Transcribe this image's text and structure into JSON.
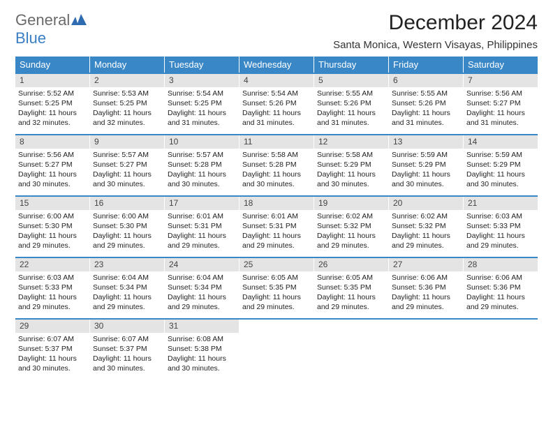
{
  "brand": {
    "part1": "General",
    "part2": "Blue"
  },
  "title": "December 2024",
  "location": "Santa Monica, Western Visayas, Philippines",
  "colors": {
    "header_bar": "#3a87c8",
    "daynum_bg": "#e4e4e4",
    "row_divider": "#3a87c8",
    "brand_gray": "#6a6a6a",
    "brand_blue": "#3a7fc4"
  },
  "days_of_week": [
    "Sunday",
    "Monday",
    "Tuesday",
    "Wednesday",
    "Thursday",
    "Friday",
    "Saturday"
  ],
  "weeks": [
    [
      {
        "n": "1",
        "sunrise": "Sunrise: 5:52 AM",
        "sunset": "Sunset: 5:25 PM",
        "day1": "Daylight: 11 hours",
        "day2": "and 32 minutes."
      },
      {
        "n": "2",
        "sunrise": "Sunrise: 5:53 AM",
        "sunset": "Sunset: 5:25 PM",
        "day1": "Daylight: 11 hours",
        "day2": "and 32 minutes."
      },
      {
        "n": "3",
        "sunrise": "Sunrise: 5:54 AM",
        "sunset": "Sunset: 5:25 PM",
        "day1": "Daylight: 11 hours",
        "day2": "and 31 minutes."
      },
      {
        "n": "4",
        "sunrise": "Sunrise: 5:54 AM",
        "sunset": "Sunset: 5:26 PM",
        "day1": "Daylight: 11 hours",
        "day2": "and 31 minutes."
      },
      {
        "n": "5",
        "sunrise": "Sunrise: 5:55 AM",
        "sunset": "Sunset: 5:26 PM",
        "day1": "Daylight: 11 hours",
        "day2": "and 31 minutes."
      },
      {
        "n": "6",
        "sunrise": "Sunrise: 5:55 AM",
        "sunset": "Sunset: 5:26 PM",
        "day1": "Daylight: 11 hours",
        "day2": "and 31 minutes."
      },
      {
        "n": "7",
        "sunrise": "Sunrise: 5:56 AM",
        "sunset": "Sunset: 5:27 PM",
        "day1": "Daylight: 11 hours",
        "day2": "and 31 minutes."
      }
    ],
    [
      {
        "n": "8",
        "sunrise": "Sunrise: 5:56 AM",
        "sunset": "Sunset: 5:27 PM",
        "day1": "Daylight: 11 hours",
        "day2": "and 30 minutes."
      },
      {
        "n": "9",
        "sunrise": "Sunrise: 5:57 AM",
        "sunset": "Sunset: 5:27 PM",
        "day1": "Daylight: 11 hours",
        "day2": "and 30 minutes."
      },
      {
        "n": "10",
        "sunrise": "Sunrise: 5:57 AM",
        "sunset": "Sunset: 5:28 PM",
        "day1": "Daylight: 11 hours",
        "day2": "and 30 minutes."
      },
      {
        "n": "11",
        "sunrise": "Sunrise: 5:58 AM",
        "sunset": "Sunset: 5:28 PM",
        "day1": "Daylight: 11 hours",
        "day2": "and 30 minutes."
      },
      {
        "n": "12",
        "sunrise": "Sunrise: 5:58 AM",
        "sunset": "Sunset: 5:29 PM",
        "day1": "Daylight: 11 hours",
        "day2": "and 30 minutes."
      },
      {
        "n": "13",
        "sunrise": "Sunrise: 5:59 AM",
        "sunset": "Sunset: 5:29 PM",
        "day1": "Daylight: 11 hours",
        "day2": "and 30 minutes."
      },
      {
        "n": "14",
        "sunrise": "Sunrise: 5:59 AM",
        "sunset": "Sunset: 5:29 PM",
        "day1": "Daylight: 11 hours",
        "day2": "and 30 minutes."
      }
    ],
    [
      {
        "n": "15",
        "sunrise": "Sunrise: 6:00 AM",
        "sunset": "Sunset: 5:30 PM",
        "day1": "Daylight: 11 hours",
        "day2": "and 29 minutes."
      },
      {
        "n": "16",
        "sunrise": "Sunrise: 6:00 AM",
        "sunset": "Sunset: 5:30 PM",
        "day1": "Daylight: 11 hours",
        "day2": "and 29 minutes."
      },
      {
        "n": "17",
        "sunrise": "Sunrise: 6:01 AM",
        "sunset": "Sunset: 5:31 PM",
        "day1": "Daylight: 11 hours",
        "day2": "and 29 minutes."
      },
      {
        "n": "18",
        "sunrise": "Sunrise: 6:01 AM",
        "sunset": "Sunset: 5:31 PM",
        "day1": "Daylight: 11 hours",
        "day2": "and 29 minutes."
      },
      {
        "n": "19",
        "sunrise": "Sunrise: 6:02 AM",
        "sunset": "Sunset: 5:32 PM",
        "day1": "Daylight: 11 hours",
        "day2": "and 29 minutes."
      },
      {
        "n": "20",
        "sunrise": "Sunrise: 6:02 AM",
        "sunset": "Sunset: 5:32 PM",
        "day1": "Daylight: 11 hours",
        "day2": "and 29 minutes."
      },
      {
        "n": "21",
        "sunrise": "Sunrise: 6:03 AM",
        "sunset": "Sunset: 5:33 PM",
        "day1": "Daylight: 11 hours",
        "day2": "and 29 minutes."
      }
    ],
    [
      {
        "n": "22",
        "sunrise": "Sunrise: 6:03 AM",
        "sunset": "Sunset: 5:33 PM",
        "day1": "Daylight: 11 hours",
        "day2": "and 29 minutes."
      },
      {
        "n": "23",
        "sunrise": "Sunrise: 6:04 AM",
        "sunset": "Sunset: 5:34 PM",
        "day1": "Daylight: 11 hours",
        "day2": "and 29 minutes."
      },
      {
        "n": "24",
        "sunrise": "Sunrise: 6:04 AM",
        "sunset": "Sunset: 5:34 PM",
        "day1": "Daylight: 11 hours",
        "day2": "and 29 minutes."
      },
      {
        "n": "25",
        "sunrise": "Sunrise: 6:05 AM",
        "sunset": "Sunset: 5:35 PM",
        "day1": "Daylight: 11 hours",
        "day2": "and 29 minutes."
      },
      {
        "n": "26",
        "sunrise": "Sunrise: 6:05 AM",
        "sunset": "Sunset: 5:35 PM",
        "day1": "Daylight: 11 hours",
        "day2": "and 29 minutes."
      },
      {
        "n": "27",
        "sunrise": "Sunrise: 6:06 AM",
        "sunset": "Sunset: 5:36 PM",
        "day1": "Daylight: 11 hours",
        "day2": "and 29 minutes."
      },
      {
        "n": "28",
        "sunrise": "Sunrise: 6:06 AM",
        "sunset": "Sunset: 5:36 PM",
        "day1": "Daylight: 11 hours",
        "day2": "and 29 minutes."
      }
    ],
    [
      {
        "n": "29",
        "sunrise": "Sunrise: 6:07 AM",
        "sunset": "Sunset: 5:37 PM",
        "day1": "Daylight: 11 hours",
        "day2": "and 30 minutes."
      },
      {
        "n": "30",
        "sunrise": "Sunrise: 6:07 AM",
        "sunset": "Sunset: 5:37 PM",
        "day1": "Daylight: 11 hours",
        "day2": "and 30 minutes."
      },
      {
        "n": "31",
        "sunrise": "Sunrise: 6:08 AM",
        "sunset": "Sunset: 5:38 PM",
        "day1": "Daylight: 11 hours",
        "day2": "and 30 minutes."
      },
      {
        "empty": true
      },
      {
        "empty": true
      },
      {
        "empty": true
      },
      {
        "empty": true
      }
    ]
  ]
}
